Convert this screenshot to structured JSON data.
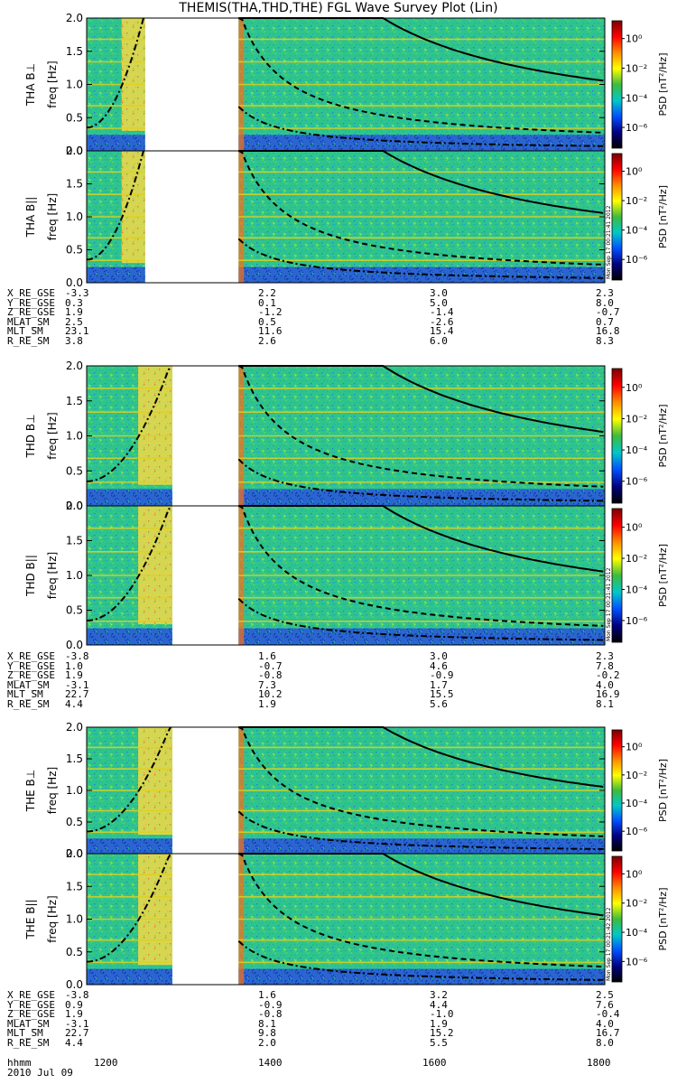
{
  "title": "THEMIS(THA,THD,THE) FGL Wave Survey Plot (Lin)",
  "timestamps": [
    "Mon Sep 17 00:21:41 2012",
    "Mon Sep 17 00:21:41 2012",
    "Mon Sep 17 00:21:42 2012"
  ],
  "colorbar": {
    "label": "PSD [nT²/Hz]",
    "ticks": [
      "10⁰",
      "10⁻²",
      "10⁻⁴",
      "10⁻⁶"
    ],
    "tick_exponents": [
      0,
      -2,
      -4,
      -6
    ],
    "colors": [
      "#7a0000",
      "#ff0000",
      "#ff8c00",
      "#ffff00",
      "#3dbb3d",
      "#00c8c8",
      "#0050ff",
      "#000080",
      "#000000"
    ]
  },
  "chart_data": [
    {
      "type": "heatmap",
      "probe": "THA",
      "panels": [
        {
          "ylabel": "THA B⊥",
          "yaxis": "freq [Hz]"
        },
        {
          "ylabel": "THA B||",
          "yaxis": "freq [Hz]"
        }
      ],
      "ylim": [
        0,
        2.0
      ],
      "yticks": [
        "0.0",
        "0.5",
        "1.0",
        "1.5",
        "2.0"
      ],
      "xlim": [
        1135,
        1800
      ],
      "data_intervals": [
        [
          1135,
          1210
        ],
        [
          1330,
          1800
        ]
      ],
      "ephemeris": [
        {
          "label": "X_RE_GSE",
          "values": [
            "-3.3",
            "2.2",
            "3.0",
            "2.3"
          ]
        },
        {
          "label": "Y_RE_GSE",
          "values": [
            "0.3",
            "0.1",
            "5.0",
            "8.0"
          ]
        },
        {
          "label": "Z_RE_GSE",
          "values": [
            "1.9",
            "-1.2",
            "-1.4",
            "-0.7"
          ]
        },
        {
          "label": "MLAT_SM",
          "values": [
            "2.5",
            "0.5",
            "-2.6",
            "0.7"
          ]
        },
        {
          "label": "MLT_SM",
          "values": [
            "23.1",
            "11.6",
            "15.4",
            "16.8"
          ]
        },
        {
          "label": "R_RE_SM",
          "values": [
            "3.8",
            "2.6",
            "6.0",
            "8.3"
          ]
        }
      ]
    },
    {
      "type": "heatmap",
      "probe": "THD",
      "panels": [
        {
          "ylabel": "THD B⊥",
          "yaxis": "freq [Hz]"
        },
        {
          "ylabel": "THD B||",
          "yaxis": "freq [Hz]"
        }
      ],
      "ylim": [
        0,
        2.0
      ],
      "yticks": [
        "0.0",
        "0.5",
        "1.0",
        "1.5",
        "2.0"
      ],
      "xlim": [
        1135,
        1800
      ],
      "data_intervals": [
        [
          1135,
          1245
        ],
        [
          1330,
          1800
        ]
      ],
      "ephemeris": [
        {
          "label": "X_RE_GSE",
          "values": [
            "-3.8",
            "1.6",
            "3.0",
            "2.3"
          ]
        },
        {
          "label": "Y_RE_GSE",
          "values": [
            "1.0",
            "-0.7",
            "4.6",
            "7.8"
          ]
        },
        {
          "label": "Z_RE_GSE",
          "values": [
            "1.9",
            "-0.8",
            "-0.9",
            "-0.2"
          ]
        },
        {
          "label": "MLAT_SM",
          "values": [
            "-3.1",
            "7.3",
            "1.7",
            "4.0"
          ]
        },
        {
          "label": "MLT_SM",
          "values": [
            "22.7",
            "10.2",
            "15.5",
            "16.9"
          ]
        },
        {
          "label": "R_RE_SM",
          "values": [
            "4.4",
            "1.9",
            "5.6",
            "8.1"
          ]
        }
      ]
    },
    {
      "type": "heatmap",
      "probe": "THE",
      "panels": [
        {
          "ylabel": "THE B⊥",
          "yaxis": "freq [Hz]"
        },
        {
          "ylabel": "THE B||",
          "yaxis": "freq [Hz]"
        }
      ],
      "ylim": [
        0,
        2.0
      ],
      "yticks": [
        "0.0",
        "0.5",
        "1.0",
        "1.5",
        "2.0"
      ],
      "xlim": [
        1135,
        1800
      ],
      "data_intervals": [
        [
          1135,
          1245
        ],
        [
          1330,
          1800
        ]
      ],
      "ephemeris": [
        {
          "label": "X_RE_GSE",
          "values": [
            "-3.8",
            "1.6",
            "3.2",
            "2.5"
          ]
        },
        {
          "label": "Y_RE_GSE",
          "values": [
            "0.9",
            "-0.9",
            "4.4",
            "7.6"
          ]
        },
        {
          "label": "Z_RE_GSE",
          "values": [
            "1.9",
            "-0.8",
            "-1.0",
            "-0.4"
          ]
        },
        {
          "label": "MLAT_SM",
          "values": [
            "-3.1",
            "8.1",
            "1.9",
            "4.0"
          ]
        },
        {
          "label": "MLT_SM",
          "values": [
            "22.7",
            "9.8",
            "15.2",
            "16.7"
          ]
        },
        {
          "label": "R_RE_SM",
          "values": [
            "4.4",
            "2.0",
            "5.5",
            "8.0"
          ]
        }
      ]
    }
  ],
  "time_axis": {
    "label": "hhmm",
    "ticks": [
      "1200",
      "1400",
      "1600",
      "1800"
    ],
    "date": "2010 Jul 09"
  }
}
